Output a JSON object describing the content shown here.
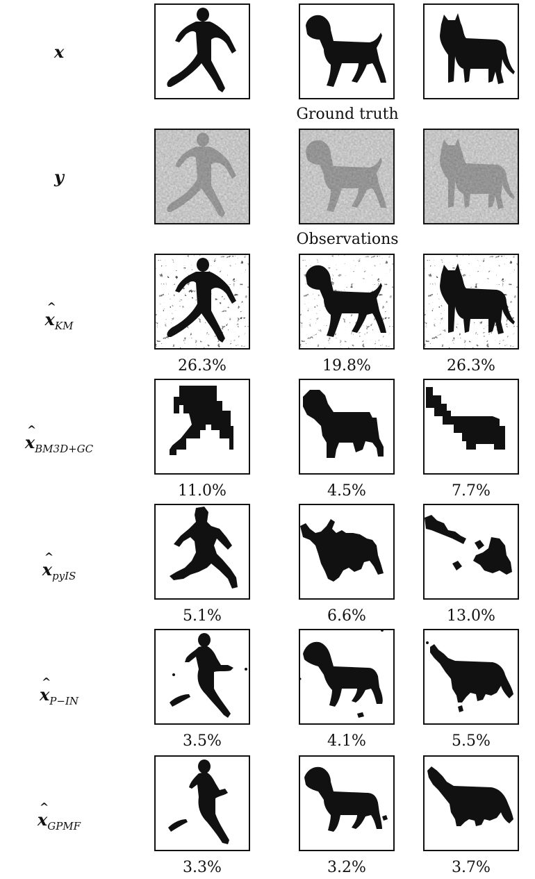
{
  "rows": [
    {
      "label_main": "x",
      "label_sub": "",
      "hat": false
    },
    {
      "label_main": "y",
      "label_sub": "",
      "hat": false
    },
    {
      "label_main": "x",
      "label_sub": "KM",
      "hat": true
    },
    {
      "label_main": "x",
      "label_sub": "BM3D+GC",
      "hat": true
    },
    {
      "label_main": "x",
      "label_sub": "pyIS",
      "hat": true
    },
    {
      "label_main": "x",
      "label_sub": "P−IN",
      "hat": true
    },
    {
      "label_main": "x",
      "label_sub": "GPMF",
      "hat": true
    }
  ],
  "section_captions": {
    "ground_truth": "Ground truth",
    "observations": "Observations"
  },
  "error_rates": {
    "km": [
      "26.3%",
      "19.8%",
      "26.3%"
    ],
    "bm3d_gc": [
      "11.0%",
      "4.5%",
      "7.7%"
    ],
    "pyis": [
      "5.1%",
      "6.6%",
      "13.0%"
    ],
    "p_in": [
      "3.5%",
      "4.1%",
      "5.5%"
    ],
    "gpmf": [
      "3.3%",
      "3.2%",
      "3.7%"
    ]
  },
  "colors": {
    "silhouette": "#111111",
    "noise_dark": "#7a7a7a",
    "noise_light": "#c8c8c8",
    "border": "#111111"
  }
}
